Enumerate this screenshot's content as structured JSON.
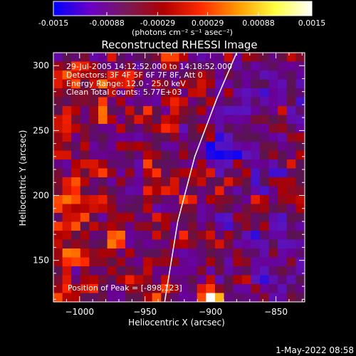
{
  "colorbar": {
    "tick_labels": [
      "-0.0015",
      "-0.00088",
      "-0.00029",
      "0.00029",
      "0.00088",
      "0.0015"
    ],
    "tick_values": [
      -0.0015,
      -0.00088,
      -0.00029,
      0.00029,
      0.00088,
      0.0015
    ],
    "range": [
      -0.0015,
      0.0015
    ],
    "units_label": "(photons cm⁻² s⁻¹ asec⁻²)",
    "colors": [
      "#0000ff",
      "#6a00c8",
      "#7a1a55",
      "#b00000",
      "#ff2a00",
      "#ff9a00",
      "#ffff40",
      "#ffffff"
    ]
  },
  "chart_data": {
    "type": "heatmap",
    "title": "Reconstructed RHESSI Image",
    "xlabel": "Heliocentric X (arcsec)",
    "ylabel": "Heliocentric Y (arcsec)",
    "xlim": [
      -1020,
      -828
    ],
    "ylim": [
      118,
      310
    ],
    "xticks": [
      -1000,
      -950,
      -900,
      -850
    ],
    "yticks": [
      150,
      200,
      250,
      300
    ],
    "xtick_labels": [
      "−1000",
      "−950",
      "−900",
      "−850"
    ],
    "ytick_labels": [
      "150",
      "200",
      "250",
      "300"
    ],
    "annotations": [
      "29-Jul-2005 14:12:52.000 to 14:18:52.000",
      "Detectors: 3F 4F 5F 6F 7F 8F, Att 0",
      "Energy Range: 12.0 - 25.0 keV",
      "Clean     Total counts: 5.77E+03"
    ],
    "peak_label": "Position of Peak = [-898,123]",
    "peak_position": [
      -898,
      123
    ],
    "limb_curve": [
      [
        -935,
        118
      ],
      [
        -925,
        180
      ],
      [
        -912,
        230
      ],
      [
        -895,
        275
      ],
      [
        -880,
        310
      ]
    ],
    "grid": false
  },
  "footer_date": "1-May-2022 08:58"
}
